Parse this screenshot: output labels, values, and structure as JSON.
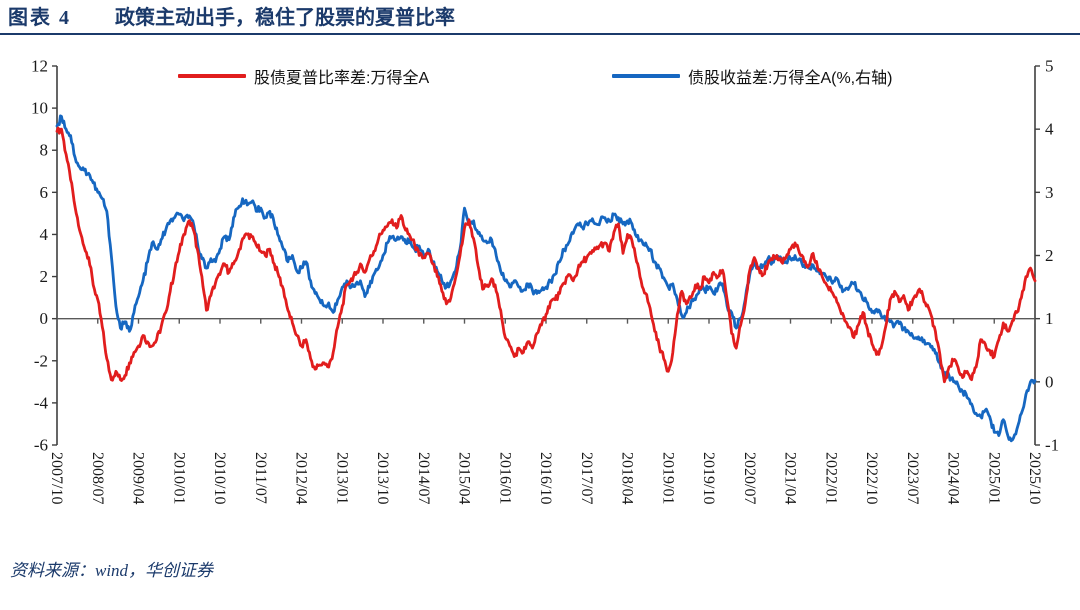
{
  "header": {
    "figure_label": "图表 4",
    "title": "政策主动出手，稳住了股票的夏普比率"
  },
  "footer": {
    "source": "资料来源：wind，华创证券"
  },
  "colors": {
    "accent_navy": "#1b3a6b",
    "red_series": "#e11d1d",
    "blue_series": "#1667c1",
    "axis_line": "#3f3f3f",
    "zero_line": "#595959"
  },
  "chart_data": {
    "type": "line",
    "x_start": "2007/10",
    "x_end": "2025/10",
    "x_frequency": "monthly",
    "grid": false,
    "legend_position": "top-inside",
    "x_tick_labels": [
      "2007/10",
      "2008/07",
      "2009/04",
      "2010/01",
      "2010/10",
      "2011/07",
      "2012/04",
      "2013/01",
      "2013/10",
      "2014/07",
      "2015/04",
      "2016/01",
      "2016/10",
      "2017/07",
      "2018/04",
      "2019/01",
      "2019/10",
      "2020/07",
      "2021/04",
      "2022/01",
      "2022/10",
      "2023/07",
      "2024/04",
      "2025/01",
      "2025/10"
    ],
    "left_axis": {
      "min": -6,
      "max": 12,
      "tick_step": 2,
      "ticks": [
        12,
        10,
        8,
        6,
        4,
        2,
        0,
        -2,
        -4,
        -6
      ]
    },
    "right_axis": {
      "min": -1,
      "max": 5,
      "tick_step": 1,
      "ticks": [
        5,
        4,
        3,
        2,
        1,
        0,
        -1
      ]
    },
    "series": [
      {
        "name": "股债夏普比率差:万得全A",
        "axis": "left",
        "color": "#e11d1d",
        "values": [
          8.9,
          9.0,
          7.8,
          6.6,
          5.3,
          4.2,
          3.4,
          2.9,
          1.6,
          0.9,
          -0.4,
          -1.9,
          -2.9,
          -2.5,
          -2.9,
          -2.7,
          -2.1,
          -1.6,
          -1.3,
          -0.8,
          -1.1,
          -1.3,
          -1.0,
          -0.4,
          0.3,
          1.3,
          2.3,
          3.2,
          4.0,
          4.6,
          4.3,
          3.3,
          2.0,
          0.4,
          1.1,
          1.7,
          2.1,
          2.6,
          2.2,
          2.6,
          3.1,
          3.8,
          4.0,
          3.9,
          3.5,
          3.2,
          3.0,
          3.3,
          2.6,
          2.0,
          1.4,
          0.4,
          -0.2,
          -0.8,
          -1.3,
          -1.0,
          -1.9,
          -2.4,
          -2.2,
          -2.1,
          -2.3,
          -1.6,
          -0.4,
          0.6,
          1.6,
          1.9,
          2.1,
          2.6,
          2.2,
          2.8,
          3.2,
          3.8,
          4.2,
          4.4,
          4.7,
          4.3,
          4.9,
          4.2,
          3.9,
          3.5,
          3.0,
          2.9,
          3.1,
          2.6,
          2.0,
          1.3,
          0.7,
          1.0,
          1.9,
          3.0,
          4.3,
          4.7,
          3.8,
          2.5,
          1.4,
          1.6,
          1.9,
          1.3,
          0.4,
          -0.9,
          -1.3,
          -1.8,
          -1.4,
          -1.6,
          -1.1,
          -1.4,
          -0.7,
          -0.3,
          0.2,
          0.8,
          0.9,
          1.2,
          1.7,
          2.1,
          1.8,
          2.3,
          2.7,
          2.9,
          3.1,
          3.3,
          3.5,
          3.6,
          3.2,
          4.1,
          4.5,
          3.1,
          4.0,
          3.7,
          2.7,
          1.8,
          1.2,
          0.5,
          -0.6,
          -1.3,
          -1.9,
          -2.5,
          -1.6,
          0.2,
          1.3,
          0.7,
          1.0,
          1.6,
          1.4,
          2.0,
          1.7,
          2.2,
          2.0,
          2.3,
          0.9,
          -0.7,
          -1.4,
          -0.3,
          0.7,
          2.3,
          2.9,
          2.4,
          2.1,
          2.6,
          2.8,
          3.0,
          2.7,
          2.9,
          3.3,
          3.6,
          3.1,
          2.7,
          2.5,
          3.1,
          2.4,
          2.0,
          1.6,
          1.3,
          1.0,
          0.4,
          -0.1,
          -0.4,
          -0.9,
          -0.3,
          0.3,
          -0.5,
          -1.2,
          -1.7,
          -1.4,
          -0.4,
          0.9,
          1.3,
          0.8,
          1.1,
          0.4,
          0.9,
          1.2,
          1.3,
          0.6,
          0.2,
          -0.6,
          -1.7,
          -3.0,
          -2.3,
          -2.0,
          -2.3,
          -2.8,
          -2.5,
          -2.9,
          -2.3,
          -1.0,
          -1.2,
          -1.5,
          -1.8,
          -1.0,
          -0.2,
          -0.6,
          -0.1,
          0.3,
          1.0,
          2.0,
          2.4,
          1.8
        ]
      },
      {
        "name": "债股收益差:万得全A(%,右轴)",
        "axis": "right",
        "color": "#1667c1",
        "values": [
          4.05,
          4.2,
          4.0,
          3.9,
          3.55,
          3.4,
          3.35,
          3.3,
          3.15,
          3.0,
          2.9,
          2.7,
          2.0,
          1.2,
          0.85,
          0.95,
          0.8,
          1.1,
          1.35,
          1.6,
          1.9,
          2.2,
          2.1,
          2.25,
          2.4,
          2.55,
          2.6,
          2.65,
          2.55,
          2.6,
          2.55,
          2.2,
          1.95,
          1.8,
          1.95,
          1.9,
          2.1,
          2.3,
          2.25,
          2.6,
          2.75,
          2.9,
          2.8,
          2.85,
          2.7,
          2.75,
          2.6,
          2.7,
          2.5,
          2.3,
          2.1,
          1.9,
          2.0,
          1.75,
          1.8,
          1.9,
          1.6,
          1.4,
          1.3,
          1.2,
          1.25,
          1.1,
          1.3,
          1.5,
          1.6,
          1.5,
          1.55,
          1.6,
          1.35,
          1.5,
          1.7,
          1.8,
          2.0,
          2.2,
          2.3,
          2.25,
          2.3,
          2.2,
          2.25,
          2.1,
          2.15,
          2.0,
          2.1,
          1.9,
          1.75,
          1.6,
          1.5,
          1.6,
          1.75,
          2.1,
          2.75,
          2.5,
          2.55,
          2.35,
          2.25,
          2.2,
          2.25,
          2.0,
          1.75,
          1.6,
          1.5,
          1.6,
          1.5,
          1.45,
          1.55,
          1.45,
          1.4,
          1.45,
          1.5,
          1.6,
          1.7,
          1.9,
          2.1,
          2.2,
          2.35,
          2.5,
          2.45,
          2.5,
          2.55,
          2.5,
          2.55,
          2.6,
          2.55,
          2.65,
          2.6,
          2.5,
          2.55,
          2.5,
          2.3,
          2.25,
          2.2,
          2.1,
          1.9,
          1.8,
          1.65,
          1.5,
          1.55,
          1.3,
          1.05,
          1.1,
          1.25,
          1.3,
          1.5,
          1.45,
          1.5,
          1.4,
          1.5,
          1.55,
          1.2,
          1.1,
          0.85,
          1.0,
          1.3,
          1.7,
          1.85,
          1.8,
          1.85,
          1.95,
          1.9,
          2.0,
          1.95,
          1.9,
          1.95,
          2.0,
          1.95,
          1.85,
          1.8,
          1.85,
          1.75,
          1.7,
          1.65,
          1.6,
          1.65,
          1.5,
          1.45,
          1.5,
          1.55,
          1.45,
          1.3,
          1.25,
          1.1,
          1.15,
          1.05,
          0.97,
          0.95,
          0.9,
          0.92,
          0.85,
          0.8,
          0.72,
          0.68,
          0.7,
          0.6,
          0.55,
          0.45,
          0.3,
          0.15,
          0.1,
          0.0,
          -0.05,
          -0.15,
          -0.25,
          -0.35,
          -0.5,
          -0.55,
          -0.45,
          -0.55,
          -0.8,
          -0.85,
          -0.6,
          -0.85,
          -0.92,
          -0.75,
          -0.5,
          -0.2,
          0.0,
          0.02
        ]
      }
    ]
  }
}
